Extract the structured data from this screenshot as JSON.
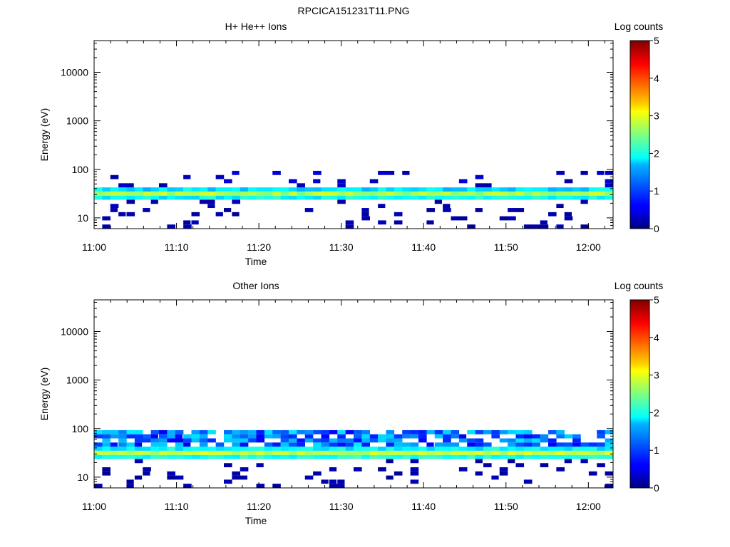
{
  "figure": {
    "filename": "RPCICA151231T11.PNG"
  },
  "chart_data": [
    {
      "type": "heatmap",
      "title": "H+ He++ Ions",
      "xlabel": "Time",
      "ylabel": "Energy (eV)",
      "x_ticks": [
        "11:00",
        "11:10",
        "11:20",
        "11:30",
        "11:40",
        "11:50",
        "12:00"
      ],
      "xlim": [
        "11:00",
        "12:03"
      ],
      "y_scale": "log",
      "ylim": [
        6,
        45000
      ],
      "y_ticks": [
        "10",
        "100",
        "1000",
        "10000"
      ],
      "colorbar": {
        "label": "Log counts",
        "range": [
          0,
          5
        ],
        "ticks": [
          "0",
          "1",
          "2",
          "3",
          "4",
          "5"
        ]
      },
      "bands": [
        {
          "energy_range": [
            22,
            44
          ],
          "peak_log_counts": 3.0,
          "description_of_coverage": "continuous"
        },
        {
          "energy_range": [
            44,
            100
          ],
          "peak_log_counts": 0.5,
          "description_of_coverage": "sparse"
        },
        {
          "energy_range": [
            6,
            22
          ],
          "peak_log_counts": 0.3,
          "description_of_coverage": "sparse"
        }
      ]
    },
    {
      "type": "heatmap",
      "title": "Other Ions",
      "xlabel": "Time",
      "ylabel": "Energy (eV)",
      "x_ticks": [
        "11:00",
        "11:10",
        "11:20",
        "11:30",
        "11:40",
        "11:50",
        "12:00"
      ],
      "xlim": [
        "11:00",
        "12:03"
      ],
      "y_scale": "log",
      "ylim": [
        6,
        45000
      ],
      "y_ticks": [
        "10",
        "100",
        "1000",
        "10000"
      ],
      "colorbar": {
        "label": "Log counts",
        "range": [
          0,
          5
        ],
        "ticks": [
          "0",
          "1",
          "2",
          "3",
          "4",
          "5"
        ]
      },
      "bands": [
        {
          "energy_range": [
            22,
            44
          ],
          "peak_log_counts": 3.2,
          "description_of_coverage": "continuous"
        },
        {
          "energy_range": [
            44,
            100
          ],
          "peak_log_counts": 1.8,
          "description_of_coverage": "dense"
        },
        {
          "energy_range": [
            6,
            22
          ],
          "peak_log_counts": 0.3,
          "description_of_coverage": "sparse"
        }
      ]
    }
  ]
}
